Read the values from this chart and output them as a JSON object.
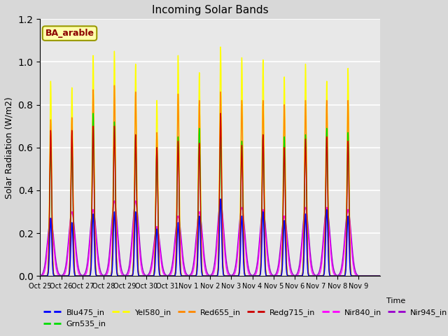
{
  "title": "Incoming Solar Bands",
  "ylabel": "Solar Radiation (W/m2)",
  "ylim": [
    0,
    1.2
  ],
  "annotation": "BA_arable",
  "x_tick_labels": [
    "Oct 25",
    "Oct 26",
    "Oct 27",
    "Oct 28",
    "Oct 29",
    "Oct 30",
    "Oct 31",
    "Nov 1",
    "Nov 2",
    "Nov 3",
    "Nov 4",
    "Nov 5",
    "Nov 6",
    "Nov 7",
    "Nov 8",
    "Nov 9"
  ],
  "series": {
    "Blu475_in": {
      "color": "#0000ff"
    },
    "Grn535_in": {
      "color": "#00dd00"
    },
    "Yel580_in": {
      "color": "#ffff00"
    },
    "Red655_in": {
      "color": "#ff8800"
    },
    "Redg715_in": {
      "color": "#cc0000"
    },
    "Nir840_in": {
      "color": "#ff00ff"
    },
    "Nir945_in": {
      "color": "#9900cc"
    }
  },
  "peaks": [
    {
      "day": 0,
      "blu": 0.27,
      "grn": 0.6,
      "yel": 0.91,
      "red": 0.73,
      "redg": 0.68,
      "nir840": 0.27,
      "nir945": 0.27
    },
    {
      "day": 1,
      "blu": 0.25,
      "grn": 0.61,
      "yel": 0.88,
      "red": 0.74,
      "redg": 0.68,
      "nir840": 0.3,
      "nir945": 0.3
    },
    {
      "day": 2,
      "blu": 0.29,
      "grn": 0.76,
      "yel": 1.03,
      "red": 0.87,
      "redg": 0.7,
      "nir840": 0.31,
      "nir945": 0.31
    },
    {
      "day": 3,
      "blu": 0.3,
      "grn": 0.72,
      "yel": 1.05,
      "red": 0.89,
      "redg": 0.7,
      "nir840": 0.35,
      "nir945": 0.35
    },
    {
      "day": 4,
      "blu": 0.3,
      "grn": 0.66,
      "yel": 0.99,
      "red": 0.86,
      "redg": 0.66,
      "nir840": 0.35,
      "nir945": 0.35
    },
    {
      "day": 5,
      "blu": 0.22,
      "grn": 0.6,
      "yel": 0.82,
      "red": 0.67,
      "redg": 0.6,
      "nir840": 0.23,
      "nir945": 0.23
    },
    {
      "day": 6,
      "blu": 0.25,
      "grn": 0.65,
      "yel": 1.03,
      "red": 0.85,
      "redg": 0.63,
      "nir840": 0.28,
      "nir945": 0.28
    },
    {
      "day": 7,
      "blu": 0.28,
      "grn": 0.69,
      "yel": 0.95,
      "red": 0.82,
      "redg": 0.62,
      "nir840": 0.3,
      "nir945": 0.3
    },
    {
      "day": 8,
      "blu": 0.36,
      "grn": 0.66,
      "yel": 1.07,
      "red": 0.86,
      "redg": 0.76,
      "nir840": 0.35,
      "nir945": 0.35
    },
    {
      "day": 9,
      "blu": 0.28,
      "grn": 0.63,
      "yel": 1.02,
      "red": 0.82,
      "redg": 0.61,
      "nir840": 0.32,
      "nir945": 0.32
    },
    {
      "day": 10,
      "blu": 0.3,
      "grn": 0.66,
      "yel": 1.01,
      "red": 0.82,
      "redg": 0.66,
      "nir840": 0.31,
      "nir945": 0.31
    },
    {
      "day": 11,
      "blu": 0.26,
      "grn": 0.65,
      "yel": 0.93,
      "red": 0.8,
      "redg": 0.6,
      "nir840": 0.28,
      "nir945": 0.28
    },
    {
      "day": 12,
      "blu": 0.29,
      "grn": 0.66,
      "yel": 0.99,
      "red": 0.82,
      "redg": 0.64,
      "nir840": 0.32,
      "nir945": 0.32
    },
    {
      "day": 13,
      "blu": 0.31,
      "grn": 0.69,
      "yel": 0.91,
      "red": 0.82,
      "redg": 0.65,
      "nir840": 0.32,
      "nir945": 0.32
    },
    {
      "day": 14,
      "blu": 0.28,
      "grn": 0.67,
      "yel": 0.97,
      "red": 0.82,
      "redg": 0.63,
      "nir840": 0.31,
      "nir945": 0.31
    }
  ],
  "n_days": 16,
  "pts_per_day": 288,
  "background_color": "#d8d8d8",
  "plot_bg_color": "#e8e8e8",
  "grid_color": "white"
}
